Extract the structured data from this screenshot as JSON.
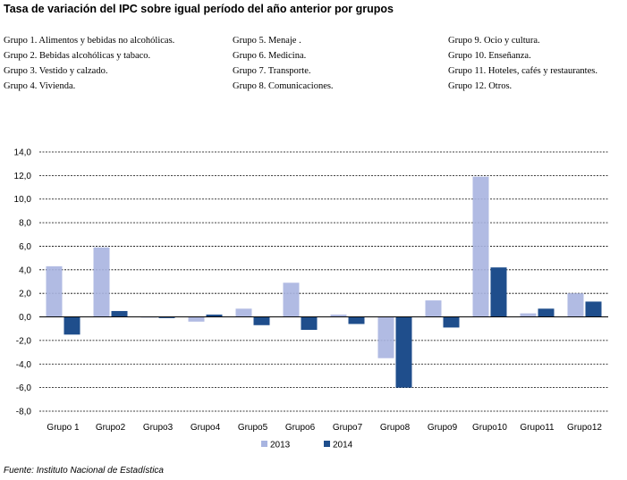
{
  "title": "Tasa de variación del IPC sobre igual período del año anterior por grupos",
  "group_legend": {
    "col1": [
      "Grupo 1. Alimentos y bebidas no alcohólicas.",
      "Grupo 2. Bebidas alcohólicas y tabaco.",
      "Grupo 3. Vestido y calzado.",
      "Grupo 4. Vivienda."
    ],
    "col2": [
      "Grupo 5. Menaje .",
      "Grupo 6. Medicina.",
      "Grupo 7. Transporte.",
      "Grupo 8. Comunicaciones."
    ],
    "col3": [
      "Grupo 9. Ocio y cultura.",
      "Grupo 10. Enseñanza.",
      "Grupo 11. Hoteles, cafés y restaurantes.",
      "Grupo 12. Otros."
    ]
  },
  "source": "Fuente: Instituto Nacional de Estadística",
  "colors": {
    "s2013": "#a8b4e0",
    "s2014": "#1f4e8c",
    "grid": "#000000"
  },
  "chart_data": {
    "type": "bar",
    "categories": [
      "Grupo 1",
      "Grupo2",
      "Grupo3",
      "Grupo4",
      "Grupo5",
      "Grupo6",
      "Grupo7",
      "Grupo8",
      "Grupo9",
      "Grupo10",
      "Grupo11",
      "Grupo12"
    ],
    "series": [
      {
        "name": "2013",
        "values": [
          4.3,
          5.9,
          0.0,
          -0.4,
          0.7,
          2.9,
          0.2,
          -3.5,
          1.4,
          11.9,
          0.3,
          2.0
        ]
      },
      {
        "name": "2014",
        "values": [
          -1.5,
          0.5,
          -0.1,
          0.2,
          -0.7,
          -1.1,
          -0.6,
          -6.0,
          -0.9,
          4.2,
          0.7,
          1.3
        ]
      }
    ],
    "yticks": [
      "14,0",
      "12,0",
      "10,0",
      "8,0",
      "6,0",
      "4,0",
      "2,0",
      "0,0",
      "-2,0",
      "-4,0",
      "-6,0",
      "-8,0"
    ],
    "ylim": [
      -8,
      14
    ],
    "grid": true,
    "legend_position": "bottom"
  }
}
